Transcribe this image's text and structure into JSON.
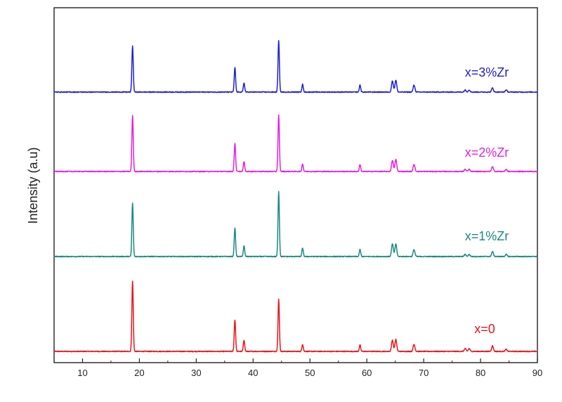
{
  "chart_data": {
    "type": "line",
    "title": "",
    "xlabel": "",
    "ylabel": "Intensity (a.u)",
    "xlim": [
      5,
      90
    ],
    "x_ticks": [
      10,
      20,
      30,
      40,
      50,
      60,
      70,
      80,
      90
    ],
    "y_ticks_shown": false,
    "grid": false,
    "legend": "inline labels at right of each trace",
    "stacked_offset": true,
    "series": [
      {
        "name": "x=0",
        "color": "#e8141c",
        "peaks": [
          {
            "x": 18.8,
            "y": 100
          },
          {
            "x": 36.8,
            "y": 45
          },
          {
            "x": 38.4,
            "y": 16
          },
          {
            "x": 44.5,
            "y": 74
          },
          {
            "x": 48.7,
            "y": 10
          },
          {
            "x": 58.8,
            "y": 9
          },
          {
            "x": 64.5,
            "y": 16
          },
          {
            "x": 65.1,
            "y": 17
          },
          {
            "x": 68.3,
            "y": 10
          },
          {
            "x": 77.3,
            "y": 4
          },
          {
            "x": 78.0,
            "y": 4
          },
          {
            "x": 82.1,
            "y": 8
          },
          {
            "x": 84.5,
            "y": 3
          }
        ]
      },
      {
        "name": "x=1%Zr",
        "color": "#1a8a80",
        "peaks": [
          {
            "x": 18.8,
            "y": 76
          },
          {
            "x": 36.8,
            "y": 41
          },
          {
            "x": 38.4,
            "y": 15
          },
          {
            "x": 44.5,
            "y": 93
          },
          {
            "x": 48.7,
            "y": 12
          },
          {
            "x": 58.8,
            "y": 10
          },
          {
            "x": 64.5,
            "y": 18
          },
          {
            "x": 65.1,
            "y": 18
          },
          {
            "x": 68.3,
            "y": 10
          },
          {
            "x": 77.3,
            "y": 3
          },
          {
            "x": 78.0,
            "y": 3
          },
          {
            "x": 82.1,
            "y": 7
          },
          {
            "x": 84.5,
            "y": 3
          }
        ]
      },
      {
        "name": "x=2%Zr",
        "color": "#e31fe0",
        "peaks": [
          {
            "x": 18.8,
            "y": 80
          },
          {
            "x": 36.8,
            "y": 40
          },
          {
            "x": 38.4,
            "y": 14
          },
          {
            "x": 44.5,
            "y": 80
          },
          {
            "x": 48.7,
            "y": 11
          },
          {
            "x": 58.8,
            "y": 10
          },
          {
            "x": 64.5,
            "y": 16
          },
          {
            "x": 65.1,
            "y": 17
          },
          {
            "x": 68.3,
            "y": 10
          },
          {
            "x": 77.3,
            "y": 3
          },
          {
            "x": 78.0,
            "y": 3
          },
          {
            "x": 82.1,
            "y": 7
          },
          {
            "x": 84.5,
            "y": 3
          }
        ]
      },
      {
        "name": "x=3%Zr",
        "color": "#1f1fd8",
        "peaks": [
          {
            "x": 18.8,
            "y": 66
          },
          {
            "x": 36.8,
            "y": 35
          },
          {
            "x": 38.4,
            "y": 13
          },
          {
            "x": 44.5,
            "y": 73
          },
          {
            "x": 48.7,
            "y": 11
          },
          {
            "x": 58.8,
            "y": 10
          },
          {
            "x": 64.5,
            "y": 16
          },
          {
            "x": 65.1,
            "y": 17
          },
          {
            "x": 68.3,
            "y": 10
          },
          {
            "x": 77.3,
            "y": 3
          },
          {
            "x": 78.0,
            "y": 3
          },
          {
            "x": 82.1,
            "y": 6
          },
          {
            "x": 84.5,
            "y": 3
          }
        ]
      }
    ]
  }
}
